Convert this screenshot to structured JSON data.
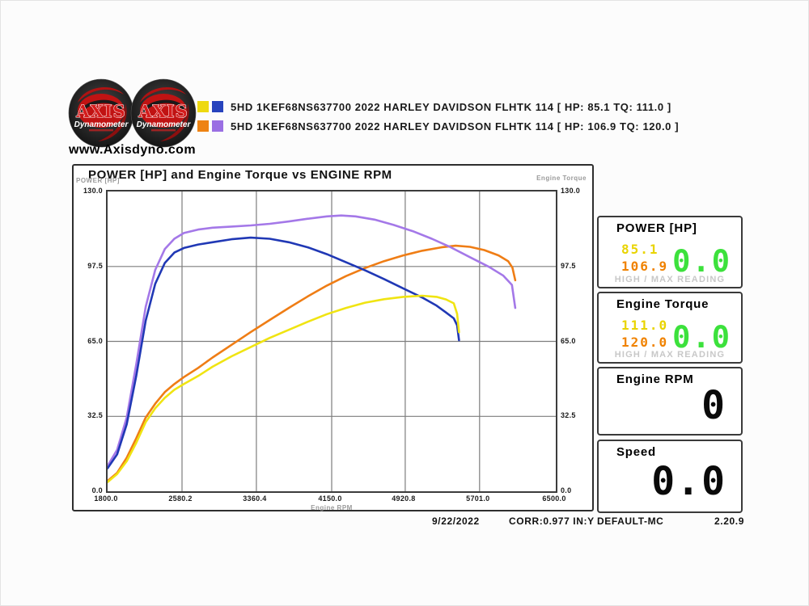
{
  "header": {
    "website": "www.Axisdyno.com",
    "logos": [
      {
        "title": "AXIS",
        "subtitle": "Dynamometer"
      },
      {
        "title": "AXIS",
        "subtitle": "Dynamometer"
      }
    ],
    "legend": {
      "rows": [
        {
          "colors": [
            "#eed911",
            "#2743bd"
          ],
          "label": "5HD 1KEF68NS637700 2022 HARLEY DAVIDSON FLHTK 114 [ HP: 85.1 TQ: 111.0 ]"
        },
        {
          "colors": [
            "#ee8313",
            "#9a6fe3"
          ],
          "label": "5HD 1KEF68NS637700 2022 HARLEY DAVIDSON FLHTK 114 [ HP: 106.9 TQ: 120.0 ]"
        }
      ]
    }
  },
  "chart_data": {
    "type": "line",
    "title": "POWER [HP] and Engine Torque vs ENGINE RPM",
    "xlabel": "Engine RPM",
    "ylabel_left": "POWER [HP]",
    "ylabel_right": "Engine Torque",
    "xlim": [
      1800,
      6500
    ],
    "ylim": [
      0,
      130
    ],
    "grid": true,
    "x_ticks": [
      "1800.0",
      "2580.2",
      "3360.4",
      "4150.0",
      "4920.8",
      "5701.0",
      "6500.0"
    ],
    "y_ticks": [
      "130.0",
      "97.5",
      "65.0",
      "32.5",
      "0.0"
    ],
    "series": [
      {
        "name": "run2-power-orange",
        "color": "#ef7d15",
        "points": [
          [
            1800,
            4.5
          ],
          [
            1900,
            8
          ],
          [
            2000,
            14.5
          ],
          [
            2100,
            23
          ],
          [
            2200,
            32
          ],
          [
            2300,
            38
          ],
          [
            2400,
            43
          ],
          [
            2500,
            46.5
          ],
          [
            2600,
            49.5
          ],
          [
            2750,
            53.5
          ],
          [
            2900,
            58
          ],
          [
            3100,
            63.5
          ],
          [
            3300,
            69
          ],
          [
            3500,
            74.3
          ],
          [
            3700,
            79.5
          ],
          [
            3900,
            84.5
          ],
          [
            4100,
            89.2
          ],
          [
            4300,
            93.3
          ],
          [
            4500,
            96.8
          ],
          [
            4700,
            99.8
          ],
          [
            4900,
            102.3
          ],
          [
            5100,
            104.3
          ],
          [
            5300,
            105.8
          ],
          [
            5450,
            106.5
          ],
          [
            5600,
            106
          ],
          [
            5750,
            104.6
          ],
          [
            5900,
            102.3
          ],
          [
            6000,
            99.8
          ],
          [
            6045,
            97
          ],
          [
            6075,
            91.5
          ]
        ]
      },
      {
        "name": "run2-torque-purple",
        "color": "#a478e8",
        "points": [
          [
            1800,
            11
          ],
          [
            1900,
            18
          ],
          [
            2000,
            32
          ],
          [
            2100,
            55
          ],
          [
            2200,
            80
          ],
          [
            2300,
            96
          ],
          [
            2400,
            105
          ],
          [
            2500,
            109.5
          ],
          [
            2600,
            112
          ],
          [
            2750,
            113.5
          ],
          [
            2900,
            114.3
          ],
          [
            3100,
            114.8
          ],
          [
            3300,
            115.3
          ],
          [
            3500,
            116
          ],
          [
            3700,
            117
          ],
          [
            3900,
            118.2
          ],
          [
            4100,
            119.2
          ],
          [
            4250,
            119.6
          ],
          [
            4400,
            119.2
          ],
          [
            4600,
            117.8
          ],
          [
            4800,
            115.5
          ],
          [
            5000,
            112.8
          ],
          [
            5200,
            109.5
          ],
          [
            5400,
            105.8
          ],
          [
            5600,
            101.5
          ],
          [
            5800,
            97.3
          ],
          [
            5950,
            93.5
          ],
          [
            6040,
            89.5
          ],
          [
            6075,
            79.5
          ]
        ]
      },
      {
        "name": "run1-torque-blue",
        "color": "#2038b5",
        "points": [
          [
            1800,
            10
          ],
          [
            1900,
            16
          ],
          [
            2000,
            29
          ],
          [
            2100,
            50
          ],
          [
            2200,
            74
          ],
          [
            2300,
            90
          ],
          [
            2400,
            99
          ],
          [
            2500,
            103.5
          ],
          [
            2600,
            105.5
          ],
          [
            2750,
            107
          ],
          [
            2900,
            108
          ],
          [
            3100,
            109.3
          ],
          [
            3300,
            110
          ],
          [
            3500,
            109.5
          ],
          [
            3700,
            108
          ],
          [
            3900,
            105.8
          ],
          [
            4100,
            102.8
          ],
          [
            4300,
            99.3
          ],
          [
            4500,
            95.8
          ],
          [
            4700,
            92
          ],
          [
            4900,
            88
          ],
          [
            5100,
            84
          ],
          [
            5250,
            80.5
          ],
          [
            5350,
            77.5
          ],
          [
            5430,
            75
          ],
          [
            5465,
            72
          ],
          [
            5485,
            65.5
          ]
        ]
      },
      {
        "name": "run1-power-yellow",
        "color": "#f0e412",
        "points": [
          [
            1800,
            4
          ],
          [
            1900,
            7.5
          ],
          [
            2000,
            13
          ],
          [
            2100,
            21
          ],
          [
            2200,
            30
          ],
          [
            2300,
            36
          ],
          [
            2400,
            40.5
          ],
          [
            2500,
            44
          ],
          [
            2600,
            46.5
          ],
          [
            2750,
            50
          ],
          [
            2900,
            54
          ],
          [
            3100,
            58.5
          ],
          [
            3300,
            62.5
          ],
          [
            3500,
            66.5
          ],
          [
            3700,
            70
          ],
          [
            3900,
            73.5
          ],
          [
            4100,
            76.8
          ],
          [
            4300,
            79.5
          ],
          [
            4500,
            81.8
          ],
          [
            4700,
            83.3
          ],
          [
            4900,
            84.3
          ],
          [
            5100,
            84.8
          ],
          [
            5250,
            84.3
          ],
          [
            5350,
            83.2
          ],
          [
            5430,
            81.5
          ],
          [
            5465,
            77
          ],
          [
            5485,
            69
          ]
        ]
      }
    ]
  },
  "readouts": {
    "power": {
      "title": "POWER [HP]",
      "run1": "85.1",
      "run2": "106.9",
      "current": "0.0",
      "footer": "HIGH / MAX READING"
    },
    "torque": {
      "title": "Engine Torque",
      "run1": "111.0",
      "run2": "120.0",
      "current": "0.0",
      "footer": "HIGH / MAX READING"
    },
    "rpm": {
      "title": "Engine RPM",
      "current": "0"
    },
    "speed": {
      "title": "Speed",
      "current": "0.0"
    }
  },
  "status_bar": {
    "date": "9/22/2022",
    "correction": "CORR:0.977 IN:Y",
    "profile": "DEFAULT-MC",
    "version": "2.20.9"
  }
}
